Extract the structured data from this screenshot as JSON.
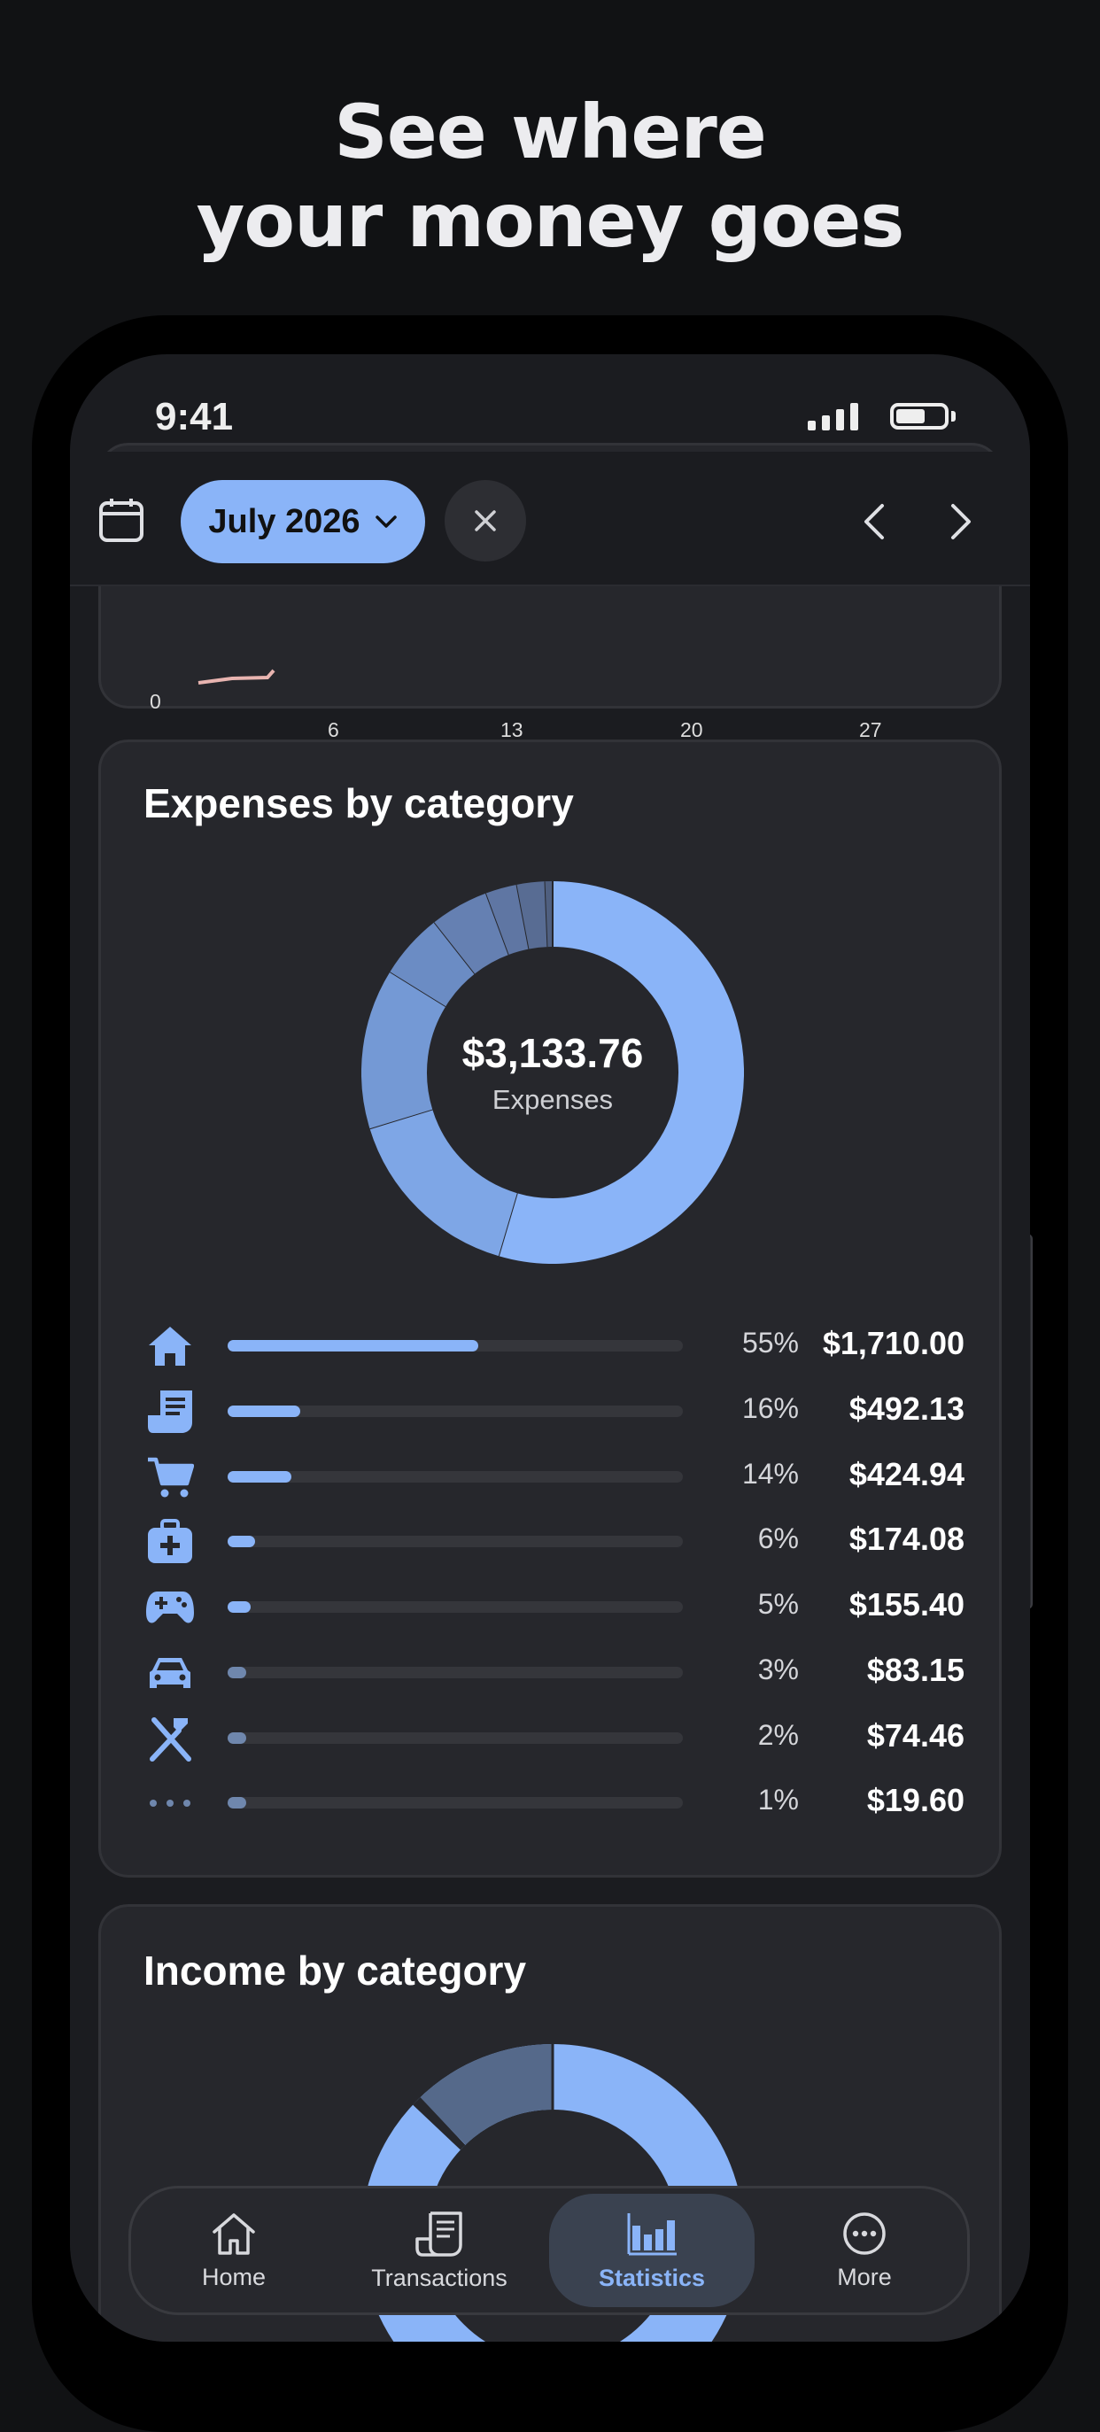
{
  "headline": {
    "line1": "See where",
    "line2": "your money goes"
  },
  "status": {
    "time": "9:41"
  },
  "toolbar": {
    "month": "July 2026"
  },
  "trend_chart": {
    "y_tick": "0",
    "x_ticks": [
      "6",
      "13",
      "20",
      "27"
    ]
  },
  "expenses": {
    "title": "Expenses by category",
    "total": "$3,133.76",
    "total_label": "Expenses",
    "categories": [
      {
        "icon": "home-icon",
        "percent": "55%",
        "amount": "$1,710.00",
        "share": 0.55
      },
      {
        "icon": "bills-icon",
        "percent": "16%",
        "amount": "$492.13",
        "share": 0.16
      },
      {
        "icon": "cart-icon",
        "percent": "14%",
        "amount": "$424.94",
        "share": 0.14
      },
      {
        "icon": "medical-kit-icon",
        "percent": "6%",
        "amount": "$174.08",
        "share": 0.06
      },
      {
        "icon": "gamepad-icon",
        "percent": "5%",
        "amount": "$155.40",
        "share": 0.05
      },
      {
        "icon": "car-icon",
        "percent": "3%",
        "amount": "$83.15",
        "share": 0.03
      },
      {
        "icon": "utensils-icon",
        "percent": "2%",
        "amount": "$74.46",
        "share": 0.02
      },
      {
        "icon": "more-dots-icon",
        "percent": "1%",
        "amount": "$19.60",
        "share": 0.01
      }
    ]
  },
  "income": {
    "title": "Income by category"
  },
  "chart_data": {
    "type": "pie",
    "categories": [
      "55%",
      "16%",
      "14%",
      "6%",
      "5%",
      "3%",
      "2%",
      "1%"
    ],
    "values": [
      1710.0,
      492.13,
      424.94,
      174.08,
      155.4,
      83.15,
      74.46,
      19.6
    ]
  },
  "tabs": [
    {
      "label": "Home",
      "icon": "home-icon"
    },
    {
      "label": "Transactions",
      "icon": "receipt-icon"
    },
    {
      "label": "Statistics",
      "icon": "bar-chart-icon",
      "active": true
    },
    {
      "label": "More",
      "icon": "more-circle-icon"
    }
  ],
  "colors": {
    "accent": "#8ab4f8",
    "background": "#111214",
    "card": "#26272c",
    "screen": "#1b1c20"
  }
}
